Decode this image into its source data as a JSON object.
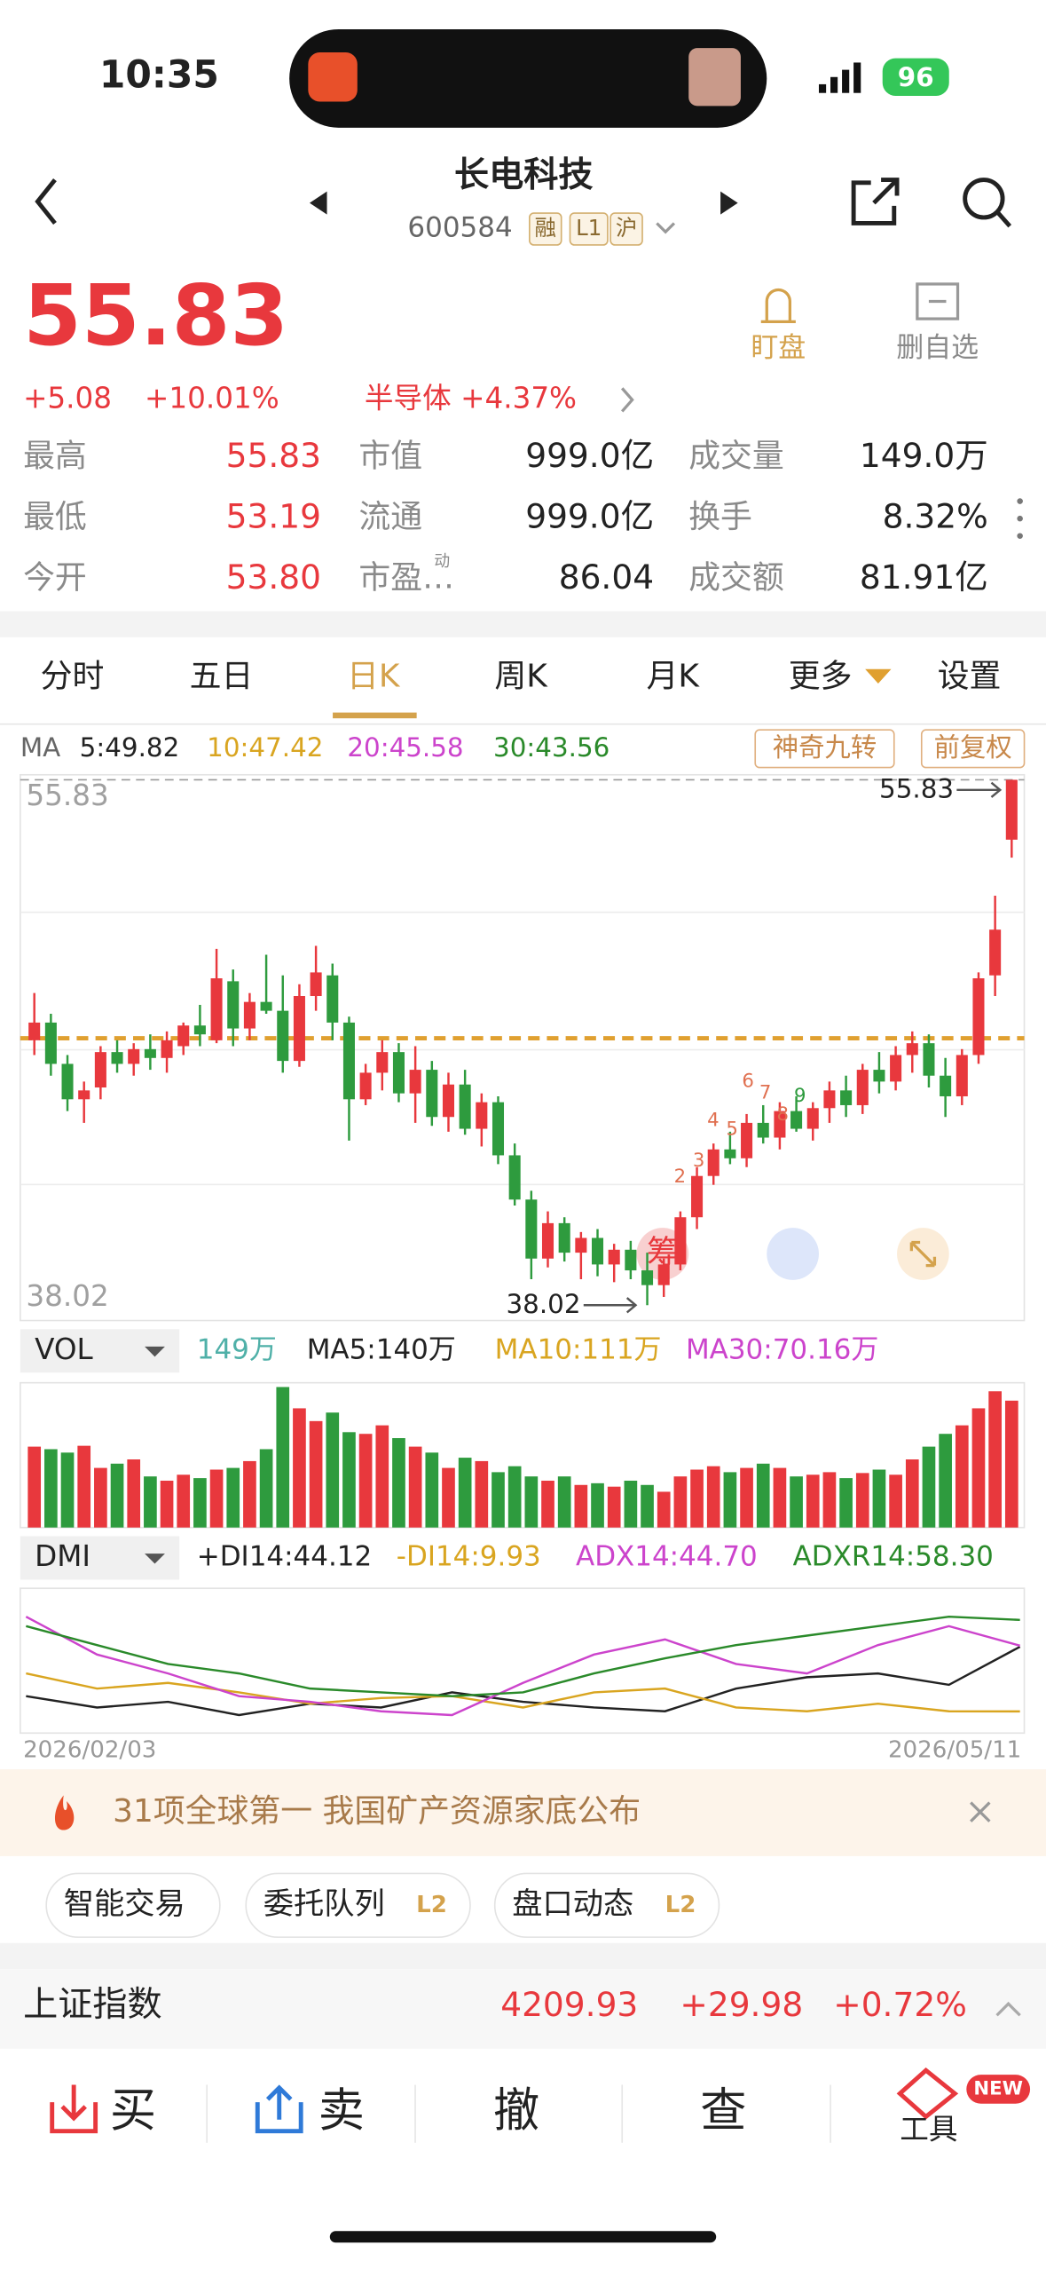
{
  "status": {
    "time": "10:35",
    "battery": "96"
  },
  "header": {
    "title": "长电科技",
    "code": "600584",
    "tags": [
      "融",
      "L1",
      "沪"
    ]
  },
  "quote": {
    "price": "55.83",
    "change": "+5.08",
    "pct": "+10.01%",
    "sector": "半导体 +4.37%"
  },
  "actions": [
    "盯盘",
    "删自选"
  ],
  "stats": [
    [
      {
        "label": "最高",
        "value": "55.83"
      },
      {
        "label": "市值",
        "value": "999.0亿"
      },
      {
        "label": "成交量",
        "value": "149.0万"
      }
    ],
    [
      {
        "label": "最低",
        "value": "53.19"
      },
      {
        "label": "流通",
        "value": "999.0亿"
      },
      {
        "label": "换手",
        "value": "8.32%"
      }
    ],
    [
      {
        "label": "今开",
        "value": "53.80"
      },
      {
        "label": "市盈…",
        "sup": "动",
        "value": "86.04"
      },
      {
        "label": "成交额",
        "value": "81.91亿"
      }
    ]
  ],
  "tabs": [
    "分时",
    "五日",
    "日K",
    "周K",
    "月K",
    "更多",
    "设置"
  ],
  "chip_button": "筹",
  "chart_buttons": [
    "神奇九转",
    "前复权"
  ],
  "nine_turn": [
    2,
    3,
    4,
    5,
    6,
    7,
    8,
    9
  ],
  "chart_data": [
    {
      "type": "candlestick",
      "legend_title": "MA",
      "legend": [
        "5:49.82",
        "10:47.42",
        "20:45.58",
        "30:43.56"
      ],
      "legend_colors": [
        "#222222",
        "#d9a520",
        "#cc44cc",
        "#2a8a2a"
      ],
      "up_color": "#e8383d",
      "down_color": "#2e9b3e",
      "ylim": [
        37.5,
        56.0
      ],
      "yticks": [
        38.02,
        55.83
      ],
      "categories": [
        "2026/02/03",
        null,
        null,
        null,
        null,
        null,
        null,
        null,
        null,
        null,
        null,
        null,
        null,
        null,
        null,
        null,
        null,
        null,
        null,
        null,
        null,
        null,
        null,
        null,
        null,
        null,
        null,
        null,
        null,
        null,
        null,
        null,
        null,
        null,
        null,
        null,
        null,
        null,
        null,
        null,
        null,
        null,
        null,
        null,
        null,
        null,
        null,
        null,
        null,
        null,
        null,
        null,
        null,
        null,
        null,
        null,
        null,
        null,
        null,
        "2026/05/11"
      ],
      "open": [
        47.0,
        47.6,
        46.2,
        45.0,
        45.4,
        46.6,
        46.2,
        46.7,
        46.4,
        46.8,
        47.5,
        47.0,
        49.0,
        47.4,
        48.3,
        48.0,
        46.3,
        48.5,
        49.2,
        47.6,
        45.0,
        45.9,
        46.6,
        45.2,
        46.0,
        44.4,
        45.5,
        44.0,
        44.9,
        43.1,
        41.6,
        39.6,
        40.8,
        39.8,
        40.3,
        39.4,
        39.9,
        39.2,
        38.7,
        39.4,
        41.0,
        42.4,
        43.3,
        43.0,
        44.2,
        43.7,
        44.6,
        44.0,
        44.7,
        45.3,
        44.8,
        46.0,
        45.6,
        46.5,
        46.9,
        45.8,
        45.1,
        46.5,
        49.2,
        53.8
      ],
      "high": [
        48.6,
        47.9,
        46.5,
        45.6,
        46.8,
        47.0,
        46.9,
        47.2,
        47.3,
        47.6,
        48.2,
        50.1,
        49.4,
        48.6,
        49.9,
        49.2,
        48.9,
        50.2,
        49.6,
        47.8,
        46.2,
        47.0,
        46.9,
        46.8,
        46.3,
        45.9,
        46.0,
        45.2,
        45.1,
        43.5,
        41.9,
        41.2,
        41.0,
        40.5,
        40.6,
        40.1,
        40.2,
        39.8,
        39.6,
        41.2,
        42.7,
        43.5,
        43.9,
        44.5,
        44.8,
        44.9,
        45.1,
        44.9,
        45.6,
        45.8,
        46.2,
        46.6,
        46.8,
        47.3,
        47.2,
        46.4,
        46.7,
        49.3,
        51.9,
        55.83
      ],
      "low": [
        46.5,
        45.8,
        44.6,
        44.2,
        45.0,
        45.9,
        45.8,
        46.0,
        45.9,
        46.5,
        46.8,
        46.9,
        46.8,
        47.0,
        47.9,
        45.9,
        46.1,
        48.0,
        47.0,
        43.6,
        44.8,
        45.3,
        44.9,
        44.2,
        44.1,
        43.9,
        43.8,
        43.4,
        42.8,
        41.4,
        38.9,
        39.3,
        39.5,
        38.9,
        39.0,
        38.8,
        38.9,
        38.02,
        38.3,
        39.2,
        40.6,
        42.1,
        42.8,
        42.7,
        43.5,
        43.3,
        43.9,
        43.6,
        44.2,
        44.4,
        44.5,
        45.2,
        45.3,
        45.9,
        45.4,
        44.4,
        44.8,
        46.2,
        48.5,
        53.19
      ],
      "close": [
        47.6,
        46.2,
        45.0,
        45.3,
        46.6,
        46.2,
        46.7,
        46.4,
        47.0,
        47.5,
        47.2,
        49.1,
        47.4,
        48.3,
        48.0,
        46.3,
        48.5,
        49.3,
        47.6,
        45.0,
        45.9,
        46.6,
        45.2,
        46.0,
        44.4,
        45.5,
        44.0,
        44.9,
        43.1,
        41.6,
        39.6,
        40.8,
        39.8,
        40.3,
        39.4,
        39.9,
        39.2,
        38.7,
        39.4,
        41.0,
        42.4,
        43.3,
        43.0,
        44.2,
        43.7,
        44.6,
        44.0,
        44.7,
        45.3,
        44.8,
        46.0,
        45.6,
        46.5,
        46.9,
        45.8,
        45.1,
        46.5,
        49.1,
        50.75,
        55.83
      ]
    },
    {
      "type": "bar",
      "title": "VOL",
      "legend": [
        "149万",
        "MA5:140万",
        "MA10:111万",
        "MA30:70.16万"
      ],
      "legend_colors": [
        "#4fb0a8",
        "#222222",
        "#d9a520",
        "#cc44cc"
      ],
      "ylim": [
        0,
        170
      ],
      "values": [
        95,
        92,
        88,
        96,
        70,
        75,
        80,
        60,
        55,
        62,
        58,
        68,
        70,
        78,
        92,
        165,
        140,
        125,
        135,
        112,
        110,
        120,
        105,
        95,
        88,
        70,
        82,
        78,
        65,
        72,
        60,
        55,
        60,
        50,
        52,
        48,
        55,
        50,
        42,
        60,
        68,
        72,
        65,
        70,
        75,
        70,
        60,
        62,
        65,
        58,
        64,
        68,
        62,
        80,
        95,
        110,
        120,
        140,
        160,
        149
      ]
    },
    {
      "type": "line",
      "title": "DMI",
      "ylim": [
        0,
        75
      ],
      "series": [
        {
          "name": "+DI14:44.12",
          "color": "#222222",
          "values": [
            18,
            12,
            15,
            8,
            14,
            12,
            20,
            15,
            12,
            10,
            22,
            28,
            30,
            24,
            44.12
          ]
        },
        {
          "name": "-DI14:9.93",
          "color": "#d9a520",
          "values": [
            30,
            22,
            25,
            20,
            14,
            17,
            18,
            12,
            20,
            22,
            12,
            10,
            14,
            10,
            9.93
          ]
        },
        {
          "name": "ADX14:44.70",
          "color": "#cc44cc",
          "values": [
            60,
            40,
            30,
            18,
            15,
            10,
            8,
            25,
            40,
            48,
            35,
            30,
            45,
            55,
            44.7
          ]
        },
        {
          "name": "ADXR14:58.30",
          "color": "#2a8a2a",
          "values": [
            55,
            45,
            35,
            30,
            22,
            20,
            18,
            20,
            30,
            38,
            45,
            50,
            55,
            60,
            58.3
          ]
        }
      ]
    }
  ],
  "news": "31项全球第一 我国矿产资源家底公布",
  "tools": [
    {
      "label": "智能交易"
    },
    {
      "label": "委托队列",
      "badge": "L2"
    },
    {
      "label": "盘口动态",
      "badge": "L2"
    }
  ],
  "index": {
    "name": "上证指数",
    "value": "4209.93",
    "change": "+29.98",
    "pct": "+0.72%"
  },
  "bottom": [
    "买",
    "卖",
    "撤",
    "查",
    "工具"
  ],
  "new_badge": "NEW"
}
